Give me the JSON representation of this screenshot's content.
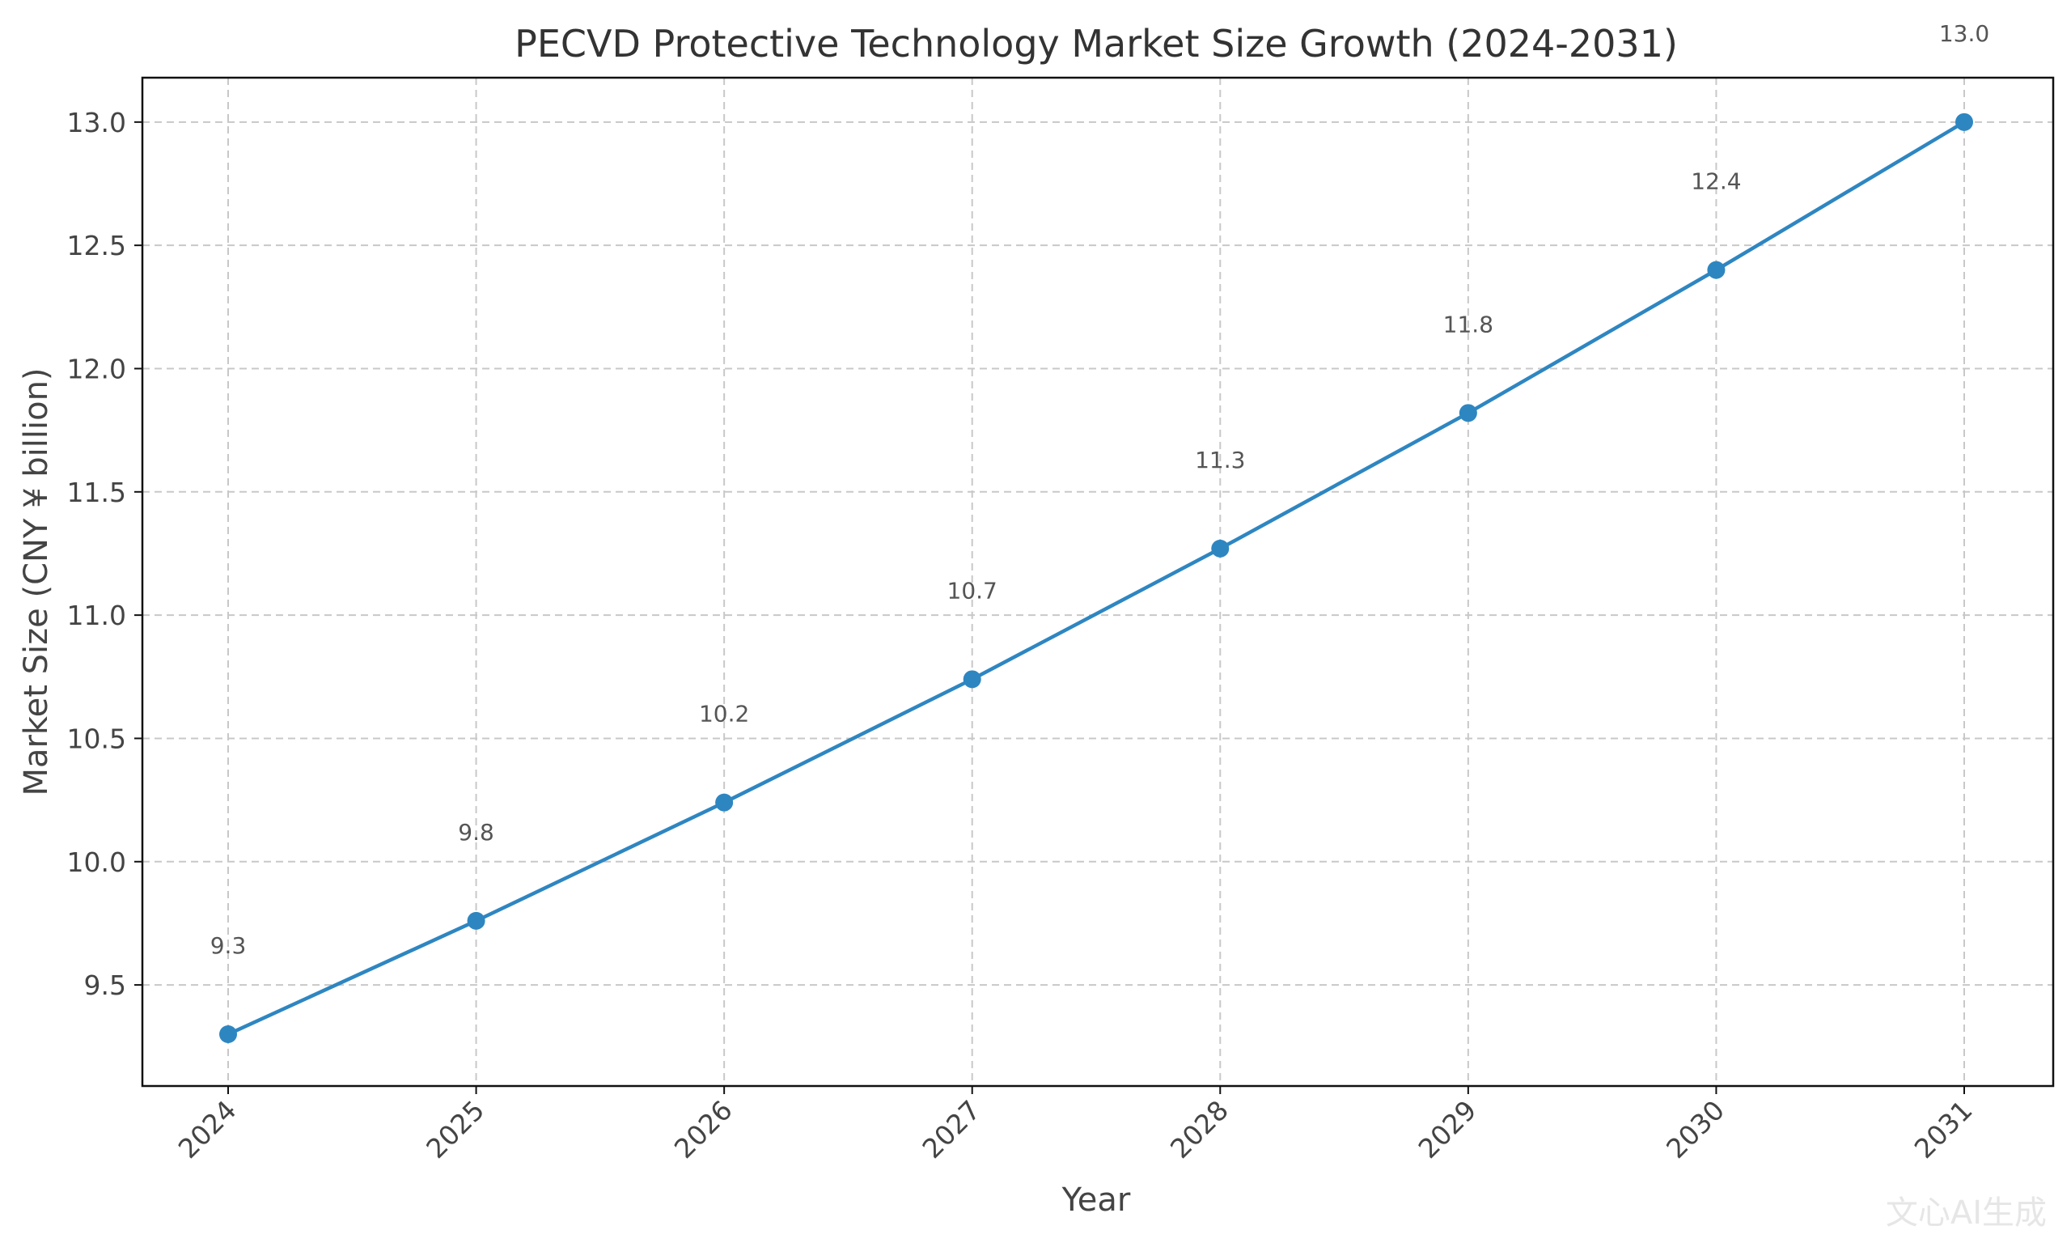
{
  "chart_data": {
    "type": "line",
    "title": "PECVD Protective Technology Market Size Growth (2024-2031)",
    "xlabel": "Year",
    "ylabel": "Market Size (CNY ¥ billion)",
    "categories": [
      "2024",
      "2025",
      "2026",
      "2027",
      "2028",
      "2029",
      "2030",
      "2031"
    ],
    "series": [
      {
        "values": [
          9.3,
          9.76,
          10.24,
          10.74,
          11.27,
          11.82,
          12.4,
          13.0
        ],
        "labels": [
          "9.3",
          "9.8",
          "10.2",
          "10.7",
          "11.3",
          "11.8",
          "12.4",
          "13.0"
        ],
        "color": "#2e86c1"
      }
    ],
    "ylim": [
      9.09,
      13.18
    ],
    "yticks": [
      9.5,
      10.0,
      10.5,
      11.0,
      11.5,
      12.0,
      12.5,
      13.0
    ],
    "ytick_labels": [
      "9.5",
      "10.0",
      "10.5",
      "11.0",
      "11.5",
      "12.0",
      "12.5",
      "13.0"
    ],
    "grid": true,
    "grid_style": "dashed",
    "legend": "none",
    "x_tick_rotation": "45"
  },
  "watermark": "文心AI生成"
}
